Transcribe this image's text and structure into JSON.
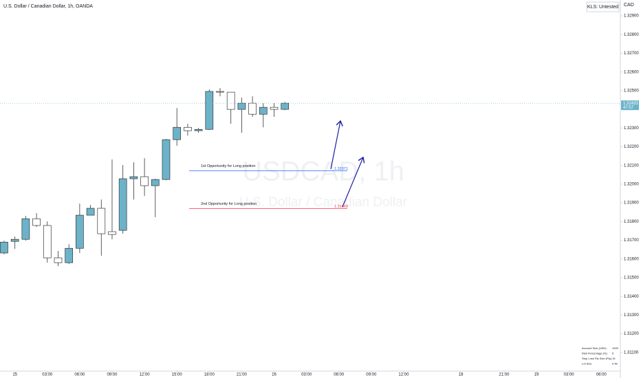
{
  "chart_data": {
    "type": "candlestick",
    "title": "U.S. Dollar / Canadian Dollar, 1h, OANDA",
    "watermark": "USDCAD, 1h",
    "watermark_subtitle": "U.S. Dollar / Canadian Dollar",
    "currency": "CAD",
    "badge": "KLS: Untested",
    "up_color": "#6cb3c9",
    "down_color": "#ffffff",
    "series": [
      {
        "open": [
          1.31632,
          1.31694,
          1.31705,
          1.31815,
          1.31779,
          1.31606,
          1.3158,
          1.31657,
          1.31834,
          1.31871,
          1.31746,
          1.31753,
          1.32029,
          1.3204,
          1.31992,
          1.32025,
          1.32238,
          1.32304,
          1.32286,
          1.32293,
          1.32496,
          1.32492,
          1.324,
          1.32433,
          1.32374,
          1.32411,
          1.324
        ],
        "high": [
          1.31698,
          1.3172,
          1.3183,
          1.31845,
          1.31801,
          1.31643,
          1.31679,
          1.31896,
          1.31889,
          1.31918,
          1.32132,
          1.32102,
          1.32117,
          1.32139,
          1.32029,
          1.32242,
          1.32407,
          1.32323,
          1.32301,
          1.32507,
          1.32514,
          1.32492,
          1.32463,
          1.3247,
          1.32433,
          1.32433,
          1.3244
        ],
        "low": [
          1.31624,
          1.31654,
          1.31698,
          1.31771,
          1.3158,
          1.31562,
          1.31573,
          1.31632,
          1.31834,
          1.31617,
          1.31705,
          1.31735,
          1.31918,
          1.31937,
          1.31823,
          1.32021,
          1.32205,
          1.3226,
          1.32275,
          1.3229,
          1.3247,
          1.32323,
          1.32275,
          1.3236,
          1.32304,
          1.3236,
          1.32396
        ],
        "close": [
          1.3169,
          1.31705,
          1.31815,
          1.31779,
          1.31606,
          1.3158,
          1.31657,
          1.31834,
          1.31871,
          1.31735,
          1.31731,
          1.32029,
          1.3204,
          1.31992,
          1.32025,
          1.32238,
          1.32304,
          1.32286,
          1.32293,
          1.32496,
          1.32492,
          1.324,
          1.32433,
          1.32374,
          1.32411,
          1.324,
          1.32433
        ]
      }
    ],
    "ylim": [
      1.31,
      1.32985
    ],
    "yticks": [
      {
        "value": 1.329,
        "label": "1.32900"
      },
      {
        "value": 1.328,
        "label": "1.32800"
      },
      {
        "value": 1.327,
        "label": "1.32700"
      },
      {
        "value": 1.326,
        "label": "1.32600"
      },
      {
        "value": 1.325,
        "label": "1.32500"
      },
      {
        "value": 1.323,
        "label": "1.32300"
      },
      {
        "value": 1.322,
        "label": "1.32200"
      },
      {
        "value": 1.321,
        "label": "1.32100"
      },
      {
        "value": 1.32,
        "label": "1.32000"
      },
      {
        "value": 1.319,
        "label": "1.31900"
      },
      {
        "value": 1.318,
        "label": "1.31800"
      },
      {
        "value": 1.317,
        "label": "1.31700"
      },
      {
        "value": 1.316,
        "label": "1.31600"
      },
      {
        "value": 1.315,
        "label": "1.31500"
      },
      {
        "value": 1.314,
        "label": "1.31400"
      },
      {
        "value": 1.313,
        "label": "1.31300"
      },
      {
        "value": 1.312,
        "label": "1.31200"
      },
      {
        "value": 1.311,
        "label": "1.31100"
      }
    ],
    "xlim": [
      -0.38,
      56.94
    ],
    "xticks": [
      {
        "value": 1,
        "label": "15"
      },
      {
        "value": 4,
        "label": "03:00"
      },
      {
        "value": 7,
        "label": "06:00"
      },
      {
        "value": 10,
        "label": "09:00"
      },
      {
        "value": 13,
        "label": "12:00"
      },
      {
        "value": 16,
        "label": "15:00"
      },
      {
        "value": 19,
        "label": "18:00"
      },
      {
        "value": 22,
        "label": "21:00"
      },
      {
        "value": 25,
        "label": "16"
      },
      {
        "value": 28,
        "label": "03:00"
      },
      {
        "value": 31,
        "label": "06:00"
      },
      {
        "value": 34,
        "label": "09:00"
      },
      {
        "value": 37,
        "label": "12:00"
      },
      {
        "value": 42.3,
        "label": "18"
      },
      {
        "value": 46.3,
        "label": "21:00"
      },
      {
        "value": 49.3,
        "label": "19"
      },
      {
        "value": 52.3,
        "label": "03:00"
      },
      {
        "value": 55.3,
        "label": "06:00"
      }
    ],
    "last_price": {
      "value": 1.32433,
      "countdown": "47:57"
    },
    "annotations": [
      {
        "text": "1st Opportunity for Long position",
        "price": 1.32071,
        "color": "#2962ff"
      },
      {
        "text": "2nd Opportunity for Long position",
        "price": 1.31869,
        "color": "#f23645"
      }
    ],
    "info_table": [
      [
        "Account Size (USD)",
        "1000"
      ],
      [
        "Risk Percentage (%)",
        "5"
      ],
      [
        "Stop Loss Pip Size (Pip)",
        "15"
      ],
      [
        "Lot Size",
        "0.46"
      ]
    ]
  }
}
